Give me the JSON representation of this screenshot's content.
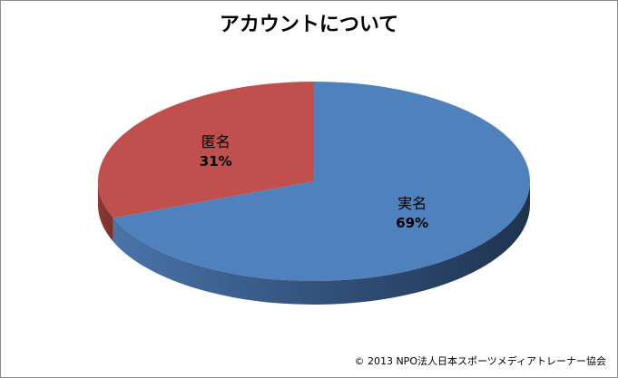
{
  "chart_data": {
    "type": "pie",
    "title": "アカウントについて",
    "three_d": true,
    "legend": "none",
    "slices": [
      {
        "label": "実名",
        "value": 69,
        "value_label": "69%",
        "color": "#4f81bd"
      },
      {
        "label": "匿名",
        "value": 31,
        "value_label": "31%",
        "color": "#c0504d"
      }
    ]
  },
  "footer": {
    "copyright": "© 2013 NPO法人日本スポーツメディアトレーナー協会"
  }
}
